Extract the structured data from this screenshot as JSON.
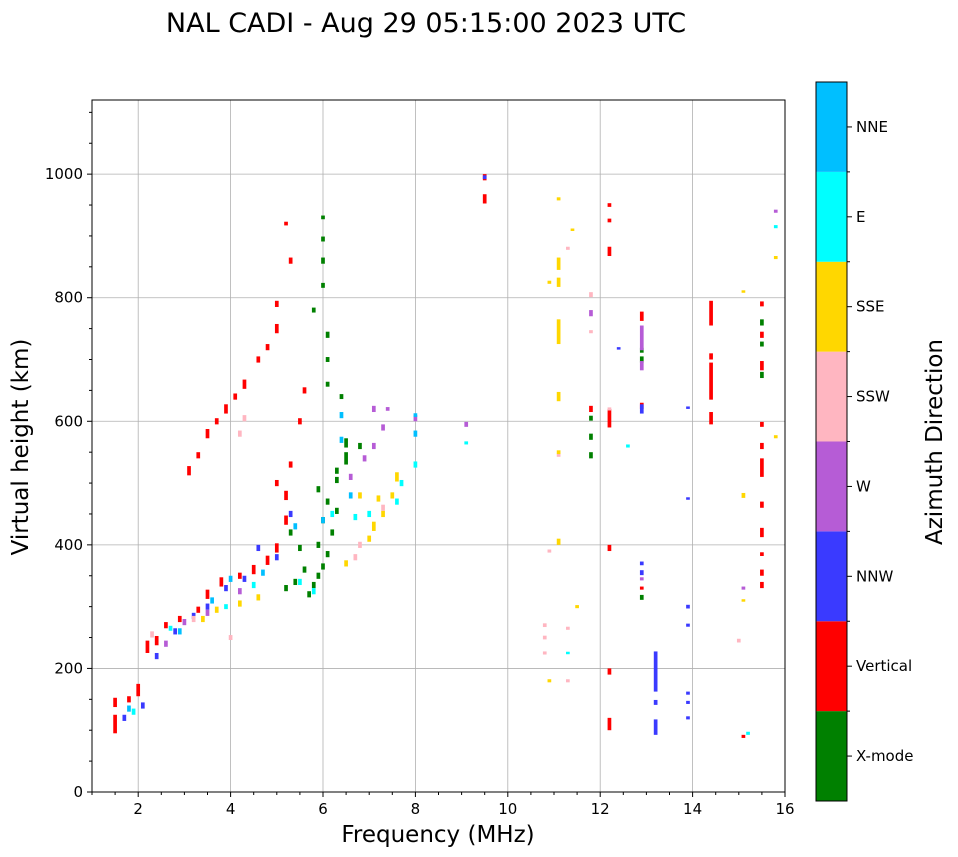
{
  "chart_data": {
    "type": "scatter",
    "title": "NAL CADI - Aug 29 05:15:00 2023 UTC",
    "xlabel": "Frequency (MHz)",
    "ylabel": "Virtual height (km)",
    "xlim": [
      1,
      16
    ],
    "ylim": [
      0,
      1120
    ],
    "x_ticks": [
      2,
      4,
      6,
      8,
      10,
      12,
      14,
      16
    ],
    "y_ticks": [
      0,
      200,
      400,
      600,
      800,
      1000
    ],
    "grid": true,
    "colorbar": {
      "label": "Azimuth Direction",
      "categories": [
        {
          "name": "X-mode",
          "color": "#008000"
        },
        {
          "name": "Vertical",
          "color": "#ff0000"
        },
        {
          "name": "NNW",
          "color": "#3a3aff"
        },
        {
          "name": "W",
          "color": "#b65cd6"
        },
        {
          "name": "SSW",
          "color": "#ffb6c1"
        },
        {
          "name": "SSE",
          "color": "#ffd700"
        },
        {
          "name": "E",
          "color": "#00ffff"
        },
        {
          "name": "NNE",
          "color": "#00bfff"
        }
      ]
    },
    "bar_width_mhz": 0.08,
    "series": [
      {
        "name": "X-mode",
        "points": [
          [
            5.7,
            320,
            10
          ],
          [
            5.8,
            335,
            10
          ],
          [
            5.9,
            350,
            10
          ],
          [
            6.0,
            365,
            10
          ],
          [
            6.1,
            385,
            10
          ],
          [
            5.9,
            400,
            10
          ],
          [
            6.2,
            420,
            10
          ],
          [
            6.0,
            440,
            10
          ],
          [
            6.3,
            455,
            10
          ],
          [
            6.1,
            470,
            10
          ],
          [
            5.9,
            490,
            10
          ],
          [
            6.3,
            520,
            10
          ],
          [
            6.5,
            540,
            20
          ],
          [
            6.5,
            565,
            15
          ],
          [
            6.8,
            560,
            10
          ],
          [
            6.4,
            640,
            8
          ],
          [
            6.1,
            660,
            8
          ],
          [
            6.1,
            700,
            8
          ],
          [
            6.1,
            740,
            10
          ],
          [
            5.8,
            780,
            8
          ],
          [
            6.0,
            820,
            8
          ],
          [
            6.0,
            860,
            10
          ],
          [
            6.0,
            895,
            8
          ],
          [
            6.0,
            930,
            6
          ],
          [
            5.5,
            395,
            10
          ],
          [
            5.6,
            360,
            10
          ],
          [
            5.4,
            340,
            10
          ],
          [
            5.2,
            330,
            10
          ],
          [
            11.8,
            545,
            10
          ],
          [
            11.8,
            575,
            10
          ],
          [
            11.8,
            605,
            8
          ],
          [
            12.9,
            700,
            10
          ],
          [
            12.9,
            715,
            8
          ],
          [
            12.9,
            315,
            8
          ],
          [
            15.5,
            675,
            10
          ],
          [
            15.5,
            725,
            8
          ],
          [
            15.5,
            760,
            10
          ],
          [
            5.3,
            420,
            10
          ],
          [
            6.3,
            505,
            10
          ]
        ]
      },
      {
        "name": "Vertical",
        "points": [
          [
            1.5,
            110,
            30
          ],
          [
            1.5,
            145,
            15
          ],
          [
            1.8,
            150,
            10
          ],
          [
            2.0,
            165,
            20
          ],
          [
            2.2,
            235,
            20
          ],
          [
            2.4,
            245,
            15
          ],
          [
            2.6,
            270,
            10
          ],
          [
            2.9,
            280,
            10
          ],
          [
            3.3,
            295,
            10
          ],
          [
            3.5,
            320,
            15
          ],
          [
            3.8,
            340,
            15
          ],
          [
            4.2,
            350,
            10
          ],
          [
            4.5,
            360,
            15
          ],
          [
            4.8,
            375,
            15
          ],
          [
            5.0,
            395,
            15
          ],
          [
            5.2,
            440,
            15
          ],
          [
            5.2,
            480,
            15
          ],
          [
            5.0,
            500,
            10
          ],
          [
            5.3,
            530,
            10
          ],
          [
            3.1,
            520,
            15
          ],
          [
            3.3,
            545,
            10
          ],
          [
            3.5,
            580,
            15
          ],
          [
            3.7,
            600,
            10
          ],
          [
            3.9,
            620,
            15
          ],
          [
            4.1,
            640,
            10
          ],
          [
            4.3,
            660,
            15
          ],
          [
            4.6,
            700,
            10
          ],
          [
            4.8,
            720,
            10
          ],
          [
            5.0,
            750,
            15
          ],
          [
            5.0,
            790,
            10
          ],
          [
            5.3,
            860,
            10
          ],
          [
            5.2,
            920,
            6
          ],
          [
            5.5,
            600,
            10
          ],
          [
            5.6,
            650,
            10
          ],
          [
            9.5,
            960,
            15
          ],
          [
            9.5,
            995,
            10
          ],
          [
            12.2,
            110,
            20
          ],
          [
            12.2,
            195,
            10
          ],
          [
            12.2,
            395,
            10
          ],
          [
            11.8,
            620,
            10
          ],
          [
            12.2,
            605,
            30
          ],
          [
            12.2,
            875,
            15
          ],
          [
            12.2,
            950,
            6
          ],
          [
            12.2,
            925,
            6
          ],
          [
            14.4,
            605,
            20
          ],
          [
            14.4,
            665,
            60
          ],
          [
            14.4,
            705,
            10
          ],
          [
            14.4,
            775,
            40
          ],
          [
            15.5,
            335,
            10
          ],
          [
            15.5,
            355,
            10
          ],
          [
            15.5,
            385,
            6
          ],
          [
            15.5,
            420,
            15
          ],
          [
            15.5,
            465,
            10
          ],
          [
            15.5,
            525,
            30
          ],
          [
            15.5,
            560,
            10
          ],
          [
            15.5,
            595,
            8
          ],
          [
            15.5,
            690,
            15
          ],
          [
            15.5,
            740,
            10
          ],
          [
            15.5,
            790,
            8
          ],
          [
            12.9,
            625,
            10
          ],
          [
            12.9,
            770,
            15
          ],
          [
            12.9,
            330,
            5
          ],
          [
            15.1,
            90,
            5
          ]
        ]
      },
      {
        "name": "NNW",
        "points": [
          [
            1.7,
            120,
            10
          ],
          [
            2.1,
            140,
            10
          ],
          [
            2.4,
            220,
            10
          ],
          [
            2.8,
            260,
            10
          ],
          [
            3.2,
            285,
            10
          ],
          [
            3.5,
            300,
            10
          ],
          [
            3.9,
            330,
            10
          ],
          [
            4.3,
            345,
            10
          ],
          [
            4.6,
            395,
            10
          ],
          [
            5.0,
            380,
            10
          ],
          [
            5.3,
            450,
            10
          ],
          [
            9.5,
            995,
            6
          ],
          [
            13.2,
            105,
            25
          ],
          [
            13.2,
            195,
            65
          ],
          [
            13.2,
            145,
            8
          ],
          [
            12.9,
            620,
            15
          ],
          [
            12.9,
            355,
            8
          ],
          [
            12.9,
            370,
            6
          ],
          [
            12.4,
            718,
            4
          ],
          [
            13.9,
            120,
            5
          ],
          [
            13.9,
            270,
            5
          ],
          [
            13.9,
            300,
            6
          ],
          [
            13.9,
            475,
            4
          ],
          [
            13.9,
            622,
            4
          ],
          [
            13.9,
            160,
            5
          ],
          [
            13.9,
            145,
            5
          ]
        ]
      },
      {
        "name": "W",
        "points": [
          [
            2.6,
            240,
            10
          ],
          [
            3.0,
            275,
            10
          ],
          [
            3.5,
            290,
            10
          ],
          [
            4.2,
            325,
            10
          ],
          [
            6.6,
            510,
            10
          ],
          [
            6.9,
            540,
            10
          ],
          [
            7.1,
            560,
            10
          ],
          [
            7.3,
            590,
            10
          ],
          [
            7.1,
            620,
            10
          ],
          [
            7.4,
            620,
            6
          ],
          [
            8.0,
            605,
            10
          ],
          [
            9.1,
            595,
            8
          ],
          [
            12.9,
            735,
            40
          ],
          [
            12.9,
            690,
            15
          ],
          [
            11.8,
            775,
            10
          ],
          [
            15.1,
            330,
            5
          ],
          [
            15.8,
            940,
            5
          ],
          [
            12.9,
            345,
            5
          ]
        ]
      },
      {
        "name": "SSW",
        "points": [
          [
            2.3,
            255,
            10
          ],
          [
            3.2,
            280,
            10
          ],
          [
            4.0,
            250,
            8
          ],
          [
            4.3,
            605,
            10
          ],
          [
            4.2,
            580,
            10
          ],
          [
            6.7,
            380,
            10
          ],
          [
            6.8,
            400,
            10
          ],
          [
            7.3,
            460,
            10
          ],
          [
            10.8,
            270,
            6
          ],
          [
            10.8,
            250,
            6
          ],
          [
            10.8,
            225,
            5
          ],
          [
            10.9,
            390,
            5
          ],
          [
            11.3,
            265,
            5
          ],
          [
            11.3,
            180,
            5
          ],
          [
            11.3,
            880,
            5
          ],
          [
            11.8,
            805,
            8
          ],
          [
            11.8,
            745,
            5
          ],
          [
            11.1,
            545,
            5
          ],
          [
            15.0,
            245,
            6
          ],
          [
            12.2,
            620,
            5
          ]
        ]
      },
      {
        "name": "SSE",
        "points": [
          [
            3.4,
            280,
            10
          ],
          [
            3.7,
            295,
            10
          ],
          [
            4.2,
            305,
            10
          ],
          [
            4.6,
            315,
            10
          ],
          [
            6.5,
            370,
            10
          ],
          [
            7.0,
            410,
            10
          ],
          [
            7.1,
            430,
            15
          ],
          [
            7.3,
            450,
            10
          ],
          [
            7.5,
            480,
            10
          ],
          [
            7.6,
            510,
            15
          ],
          [
            7.2,
            475,
            10
          ],
          [
            6.8,
            480,
            10
          ],
          [
            11.1,
            405,
            10
          ],
          [
            11.1,
            550,
            6
          ],
          [
            11.1,
            640,
            15
          ],
          [
            11.1,
            745,
            40
          ],
          [
            11.1,
            825,
            15
          ],
          [
            11.1,
            855,
            20
          ],
          [
            11.1,
            960,
            5
          ],
          [
            10.9,
            825,
            5
          ],
          [
            10.9,
            180,
            5
          ],
          [
            11.5,
            300,
            5
          ],
          [
            11.4,
            910,
            4
          ],
          [
            15.1,
            480,
            8
          ],
          [
            15.1,
            310,
            4
          ],
          [
            15.1,
            810,
            4
          ],
          [
            15.8,
            575,
            5
          ],
          [
            15.8,
            865,
            5
          ]
        ]
      },
      {
        "name": "E",
        "points": [
          [
            1.9,
            130,
            10
          ],
          [
            2.7,
            265,
            8
          ],
          [
            3.9,
            300,
            8
          ],
          [
            4.5,
            335,
            10
          ],
          [
            5.5,
            340,
            10
          ],
          [
            5.8,
            325,
            10
          ],
          [
            6.2,
            450,
            10
          ],
          [
            6.7,
            445,
            10
          ],
          [
            7.0,
            450,
            10
          ],
          [
            7.6,
            470,
            10
          ],
          [
            7.7,
            500,
            10
          ],
          [
            8.0,
            530,
            10
          ],
          [
            9.1,
            565,
            5
          ],
          [
            11.3,
            225,
            4
          ],
          [
            12.6,
            560,
            5
          ],
          [
            15.2,
            95,
            5
          ],
          [
            15.8,
            915,
            5
          ]
        ]
      },
      {
        "name": "NNE",
        "points": [
          [
            1.8,
            135,
            10
          ],
          [
            2.9,
            260,
            10
          ],
          [
            3.6,
            310,
            10
          ],
          [
            4.0,
            345,
            10
          ],
          [
            4.7,
            355,
            10
          ],
          [
            5.4,
            430,
            10
          ],
          [
            6.0,
            440,
            10
          ],
          [
            6.6,
            480,
            10
          ],
          [
            6.4,
            570,
            10
          ],
          [
            6.4,
            610,
            10
          ],
          [
            8.0,
            580,
            10
          ],
          [
            8.0,
            610,
            6
          ]
        ]
      }
    ]
  }
}
